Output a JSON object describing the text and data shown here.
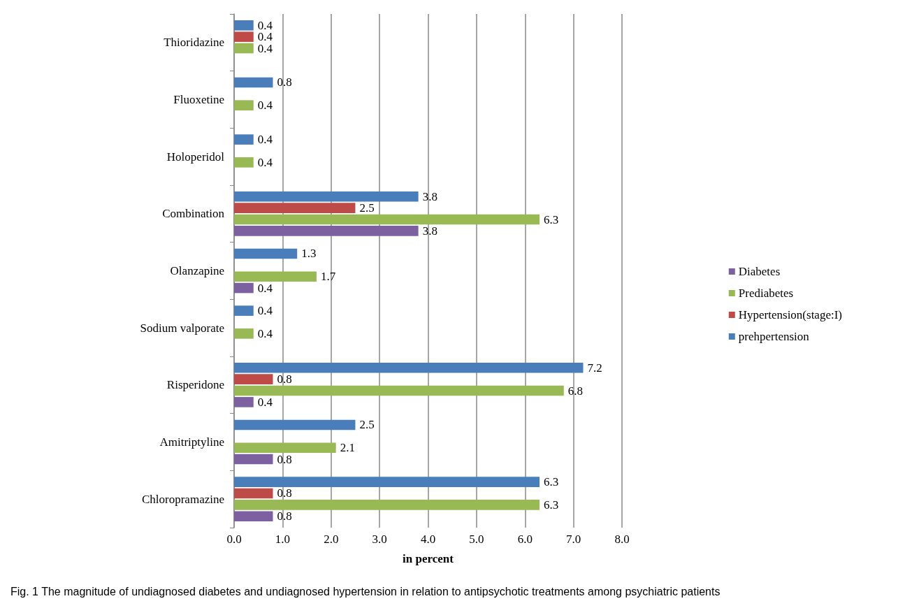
{
  "chart_data": {
    "type": "bar",
    "orientation": "horizontal",
    "xlabel": "in percent",
    "annotations": [
      "Fig. 1 The magnitude of undiagnosed diabetes and undiagnosed hypertension in relation to antipsychotic treatments among psychiatric patients"
    ],
    "categories": [
      "Thioridazine",
      "Fluoxetine",
      "Holoperidol",
      "Combination",
      "Olanzapine",
      "Sodium valporate",
      "Risperidone",
      "Amitriptyline",
      "Chloropramazine"
    ],
    "series": [
      {
        "name": "prehpertension",
        "color": "#4a7ebb",
        "values": [
          0.4,
          0.8,
          0.4,
          3.8,
          1.3,
          0.4,
          7.2,
          2.5,
          6.3
        ]
      },
      {
        "name": "Hypertension(stage:I)",
        "color": "#be4b48",
        "values": [
          0.4,
          null,
          null,
          2.5,
          null,
          null,
          0.8,
          null,
          0.8
        ]
      },
      {
        "name": "Prediabetes",
        "color": "#98b954",
        "values": [
          0.4,
          0.4,
          0.4,
          6.3,
          1.7,
          0.4,
          6.8,
          2.1,
          6.3
        ]
      },
      {
        "name": "Diabetes",
        "color": "#7d60a0",
        "values": [
          null,
          null,
          null,
          3.8,
          0.4,
          null,
          0.4,
          0.8,
          0.8
        ]
      }
    ],
    "xlim": [
      0,
      8
    ],
    "xticks": [
      {
        "value": 0,
        "label": "0.0"
      },
      {
        "value": 1,
        "label": "1.0"
      },
      {
        "value": 2,
        "label": "2.0"
      },
      {
        "value": 3,
        "label": "3.0"
      },
      {
        "value": 4,
        "label": "4.0"
      },
      {
        "value": 5,
        "label": "5.0"
      },
      {
        "value": 6,
        "label": "6.0"
      },
      {
        "value": 7,
        "label": "7.0"
      },
      {
        "value": 8,
        "label": "8.0"
      }
    ],
    "grid": "x",
    "legend": "right",
    "data_labels": true
  }
}
